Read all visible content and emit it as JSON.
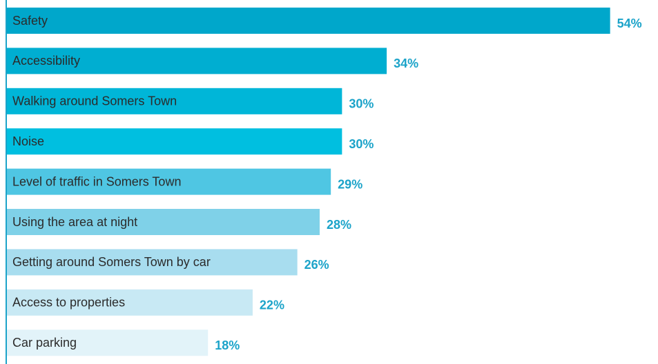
{
  "chart_data": {
    "type": "barh",
    "categories": [
      "Safety",
      "Accessibility",
      "Walking around Somers Town",
      "Noise",
      "Level of traffic in Somers Town",
      "Using the area at night",
      "Getting around Somers Town by car",
      "Access to properties",
      "Car parking"
    ],
    "values": [
      54,
      34,
      30,
      30,
      29,
      28,
      26,
      22,
      18
    ],
    "value_labels": [
      "54%",
      "34%",
      "30%",
      "30%",
      "29%",
      "28%",
      "26%",
      "22%",
      "18%"
    ],
    "colors": [
      "#00a7cb",
      "#00aed1",
      "#00b6d8",
      "#00bfe0",
      "#4fc6e3",
      "#7fd1e8",
      "#a8ddef",
      "#c8e9f4",
      "#e2f3f9"
    ],
    "xlim": [
      0,
      56
    ]
  }
}
